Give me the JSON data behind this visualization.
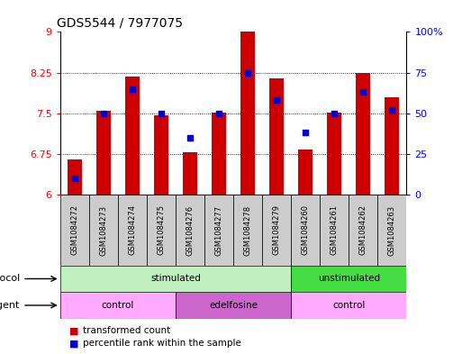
{
  "title": "GDS5544 / 7977075",
  "samples": [
    "GSM1084272",
    "GSM1084273",
    "GSM1084274",
    "GSM1084275",
    "GSM1084276",
    "GSM1084277",
    "GSM1084278",
    "GSM1084279",
    "GSM1084260",
    "GSM1084261",
    "GSM1084262",
    "GSM1084263"
  ],
  "transformed_counts": [
    6.65,
    7.55,
    8.18,
    7.47,
    6.79,
    7.51,
    9.0,
    8.15,
    6.84,
    7.51,
    8.25,
    7.8
  ],
  "percentile_ranks": [
    10,
    50,
    65,
    50,
    35,
    50,
    75,
    58,
    38,
    50,
    63,
    52
  ],
  "bar_color": "#cc0000",
  "dot_color": "#0000cc",
  "ylim_left": [
    6,
    9
  ],
  "ylim_right": [
    0,
    100
  ],
  "yticks_left": [
    6,
    6.75,
    7.5,
    8.25,
    9
  ],
  "yticks_right": [
    0,
    25,
    50,
    75,
    100
  ],
  "dotted_lines": [
    6.75,
    7.5,
    8.25
  ],
  "protocol_groups": [
    {
      "label": "stimulated",
      "start": 0,
      "end": 8,
      "color": "#c0f0c0"
    },
    {
      "label": "unstimulated",
      "start": 8,
      "end": 12,
      "color": "#44dd44"
    }
  ],
  "agent_groups": [
    {
      "label": "control",
      "start": 0,
      "end": 4,
      "color": "#ffaaff"
    },
    {
      "label": "edelfosine",
      "start": 4,
      "end": 8,
      "color": "#cc66cc"
    },
    {
      "label": "control",
      "start": 8,
      "end": 12,
      "color": "#ffaaff"
    }
  ],
  "sample_cell_color": "#cccccc",
  "legend_bar_color": "#cc0000",
  "legend_dot_color": "#0000cc",
  "legend_bar_label": "transformed count",
  "legend_dot_label": "percentile rank within the sample",
  "title_fontsize": 10,
  "axis_fontsize": 8,
  "bar_width": 0.5
}
